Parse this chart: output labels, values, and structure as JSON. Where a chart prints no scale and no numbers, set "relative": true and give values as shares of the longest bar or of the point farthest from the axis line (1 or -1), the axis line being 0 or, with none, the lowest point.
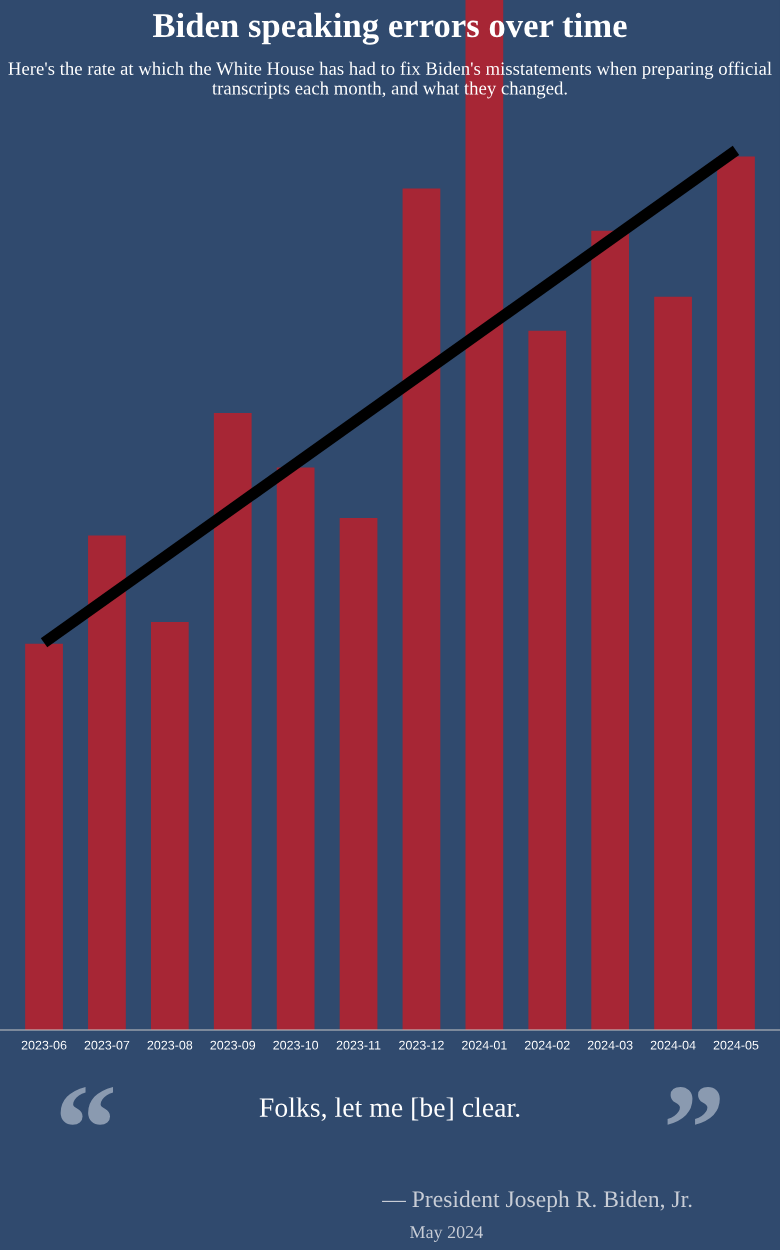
{
  "chart_data": {
    "type": "bar",
    "title": "Biden speaking errors over time",
    "subtitle": "Here's the rate at which the White House has had to fix Biden's misstatements when preparing official transcripts each month, and what they changed.",
    "categories": [
      "2023-06",
      "2023-07",
      "2023-08",
      "2023-09",
      "2023-10",
      "2023-11",
      "2023-12",
      "2024-01",
      "2024-02",
      "2024-03",
      "2024-04",
      "2024-05"
    ],
    "relative": true,
    "series": [
      {
        "color": "#b5222f",
        "values": [
          0.375,
          0.48,
          0.396,
          0.599,
          0.546,
          0.497,
          0.817,
          1.0,
          0.679,
          0.776,
          0.712,
          0.848
        ]
      },
      {
        "type": "line",
        "color": "#000000",
        "values": [
          0.376,
          null,
          null,
          null,
          null,
          null,
          null,
          null,
          null,
          null,
          null,
          0.854
        ]
      }
    ],
    "annotations": [
      "“",
      "Folks, let me [be] clear.",
      "”",
      "— President Joseph R. Biden, Jr.",
      "May 2024"
    ]
  }
}
